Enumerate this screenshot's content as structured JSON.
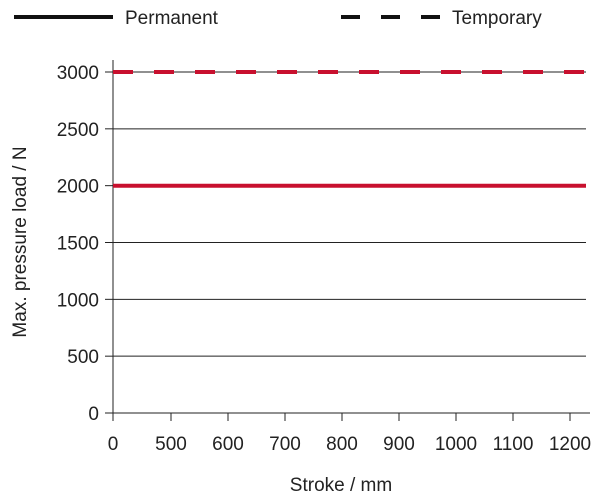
{
  "chart_data": {
    "type": "line",
    "xlabel": "Stroke / mm",
    "ylabel": "Max. pressure load / N",
    "xlim": [
      0,
      1230
    ],
    "ylim": [
      0,
      3000
    ],
    "x_ticks": [
      0,
      500,
      600,
      700,
      800,
      900,
      1000,
      1100,
      1200
    ],
    "y_ticks": [
      0,
      500,
      1000,
      1500,
      2000,
      2500,
      3000
    ],
    "grid": {
      "horizontal": true,
      "vertical": false
    },
    "legend_position": "top",
    "series": [
      {
        "name": "Permanent",
        "style": "solid",
        "legend_color": "#111111",
        "color": "#c8102e",
        "x": [
          0,
          1230
        ],
        "y": [
          2000,
          2000
        ]
      },
      {
        "name": "Temporary",
        "style": "dashed",
        "legend_color": "#111111",
        "color": "#c8102e",
        "x": [
          0,
          1230
        ],
        "y": [
          3000,
          3000
        ]
      }
    ]
  }
}
